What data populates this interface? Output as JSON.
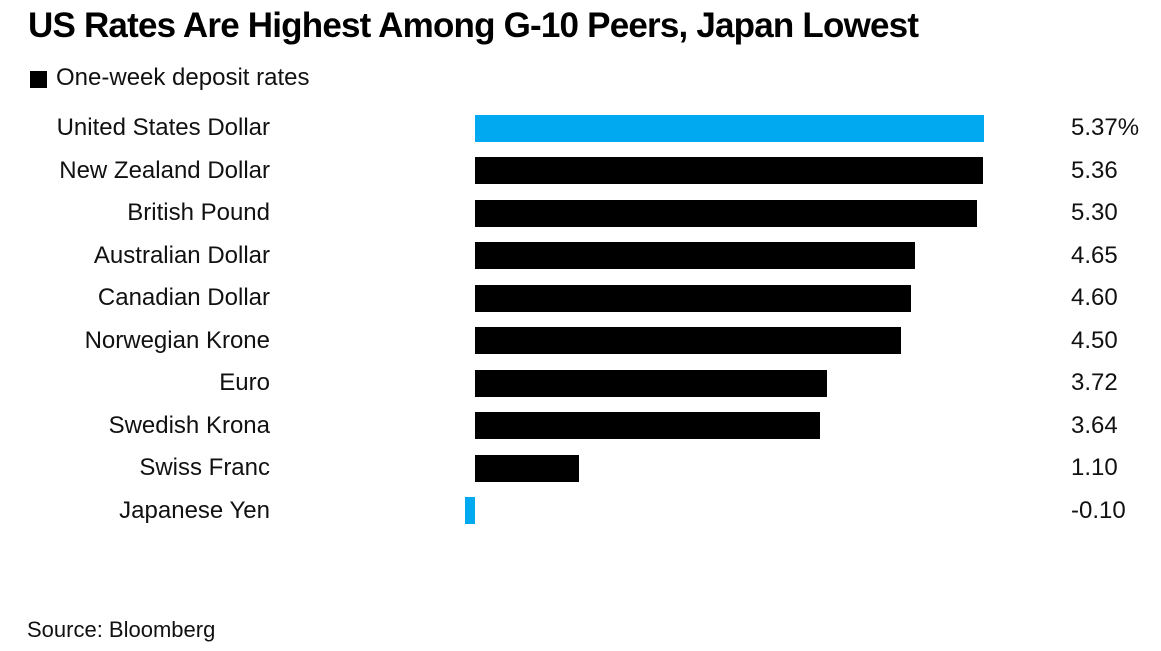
{
  "colors": {
    "highlight_blue": "#00a9f0",
    "bar_black": "#000000",
    "background": "#ffffff",
    "text": "#111111"
  },
  "chart_data": {
    "type": "bar",
    "orientation": "horizontal",
    "title": "US Rates Are Highest Among G-10 Peers, Japan Lowest",
    "legend_label": "One-week deposit rates",
    "legend_position": "top-left",
    "legend_marker_color": "#000000",
    "categories": [
      "United States Dollar",
      "New Zealand Dollar",
      "British Pound",
      "Australian Dollar",
      "Canadian Dollar",
      "Norwegian Krone",
      "Euro",
      "Swedish Krona",
      "Swiss Franc",
      "Japanese Yen"
    ],
    "values": [
      5.37,
      5.36,
      5.3,
      4.65,
      4.6,
      4.5,
      3.72,
      3.64,
      1.1,
      -0.1
    ],
    "value_labels": [
      "5.37%",
      "5.36",
      "5.30",
      "4.65",
      "4.60",
      "4.50",
      "3.72",
      "3.64",
      "1.10",
      "-0.10"
    ],
    "highlighted_categories": [
      "United States Dollar",
      "Japanese Yen"
    ],
    "xlim": [
      -0.2,
      5.5
    ],
    "grid": false,
    "xlabel": "",
    "ylabel": "",
    "source": "Source: Bloomberg"
  }
}
